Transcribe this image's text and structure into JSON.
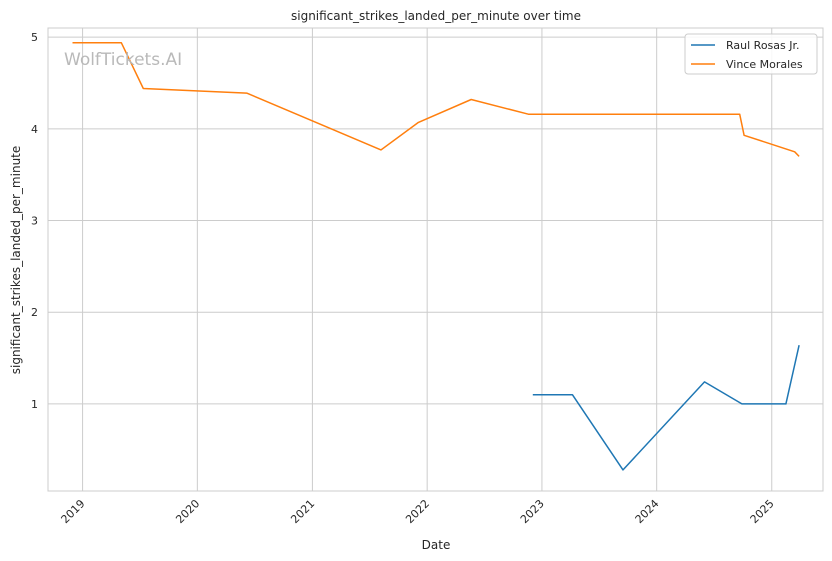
{
  "chart_data": {
    "type": "line",
    "title": "significant_strikes_landed_per_minute over time",
    "xlabel": "Date",
    "ylabel": "significant_strikes_landed_per_minute",
    "watermark": "WolfTickets.AI",
    "x_ticks": [
      "2019",
      "2020",
      "2021",
      "2022",
      "2023",
      "2024",
      "2025"
    ],
    "y_ticks": [
      "1",
      "2",
      "3",
      "4",
      "5"
    ],
    "xlim": [
      "2018-09-13",
      "2025-06-13"
    ],
    "ylim": [
      0.05,
      5.1
    ],
    "grid": true,
    "legend_position": "top-right",
    "series": [
      {
        "name": "Raul Rosas Jr.",
        "color": "#1f77b4",
        "points": [
          [
            "2022-12-03",
            1.1
          ],
          [
            "2023-04-08",
            1.1
          ],
          [
            "2023-09-16",
            0.28
          ],
          [
            "2024-06-01",
            1.24
          ],
          [
            "2024-09-28",
            1.0
          ],
          [
            "2025-02-15",
            1.0
          ],
          [
            "2025-03-29",
            1.64
          ]
        ]
      },
      {
        "name": "Vince Morales",
        "color": "#ff7f0e",
        "points": [
          [
            "2018-11-30",
            4.94
          ],
          [
            "2019-05-04",
            4.94
          ],
          [
            "2019-07-13",
            4.44
          ],
          [
            "2020-06-06",
            4.39
          ],
          [
            "2021-08-07",
            3.77
          ],
          [
            "2021-12-04",
            4.07
          ],
          [
            "2022-05-21",
            4.32
          ],
          [
            "2022-11-19",
            4.16
          ],
          [
            "2024-09-21",
            4.16
          ],
          [
            "2024-10-05",
            3.93
          ],
          [
            "2025-03-15",
            3.75
          ],
          [
            "2025-03-29",
            3.7
          ]
        ]
      }
    ]
  }
}
